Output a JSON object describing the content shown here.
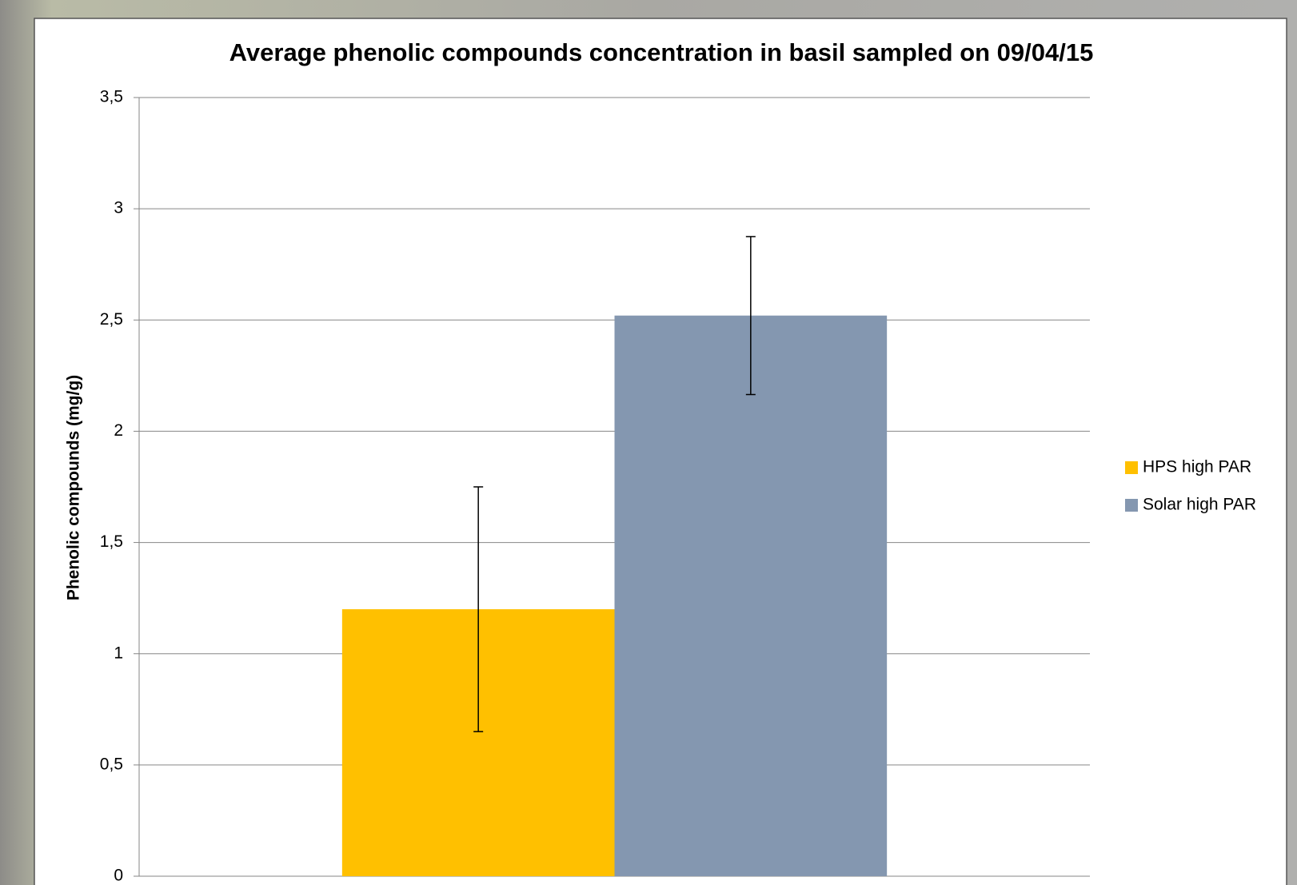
{
  "chart_data": {
    "type": "bar",
    "title": "Average phenolic compounds concentration in basil sampled on 09/04/15",
    "y_label": "Phenolic compounds (mg/g)",
    "categories": [
      null
    ],
    "series": [
      {
        "name": "HPS high PAR",
        "color": "#ffc000",
        "values": [
          1.2
        ],
        "errors": [
          0.55
        ]
      },
      {
        "name": "Solar high PAR",
        "color": "#8497b0",
        "values": [
          2.52
        ],
        "errors": [
          0.355
        ]
      }
    ],
    "ylim": [
      0,
      3.5
    ],
    "yticks": [
      0,
      {
        "value": 0.5,
        "label": "0,5"
      },
      1,
      {
        "value": 1.5,
        "label": "1,5"
      },
      2,
      {
        "value": 2.5,
        "label": "2,5"
      },
      3,
      {
        "value": 3.5,
        "label": "3,5"
      }
    ],
    "grid": true,
    "legend": "right"
  }
}
